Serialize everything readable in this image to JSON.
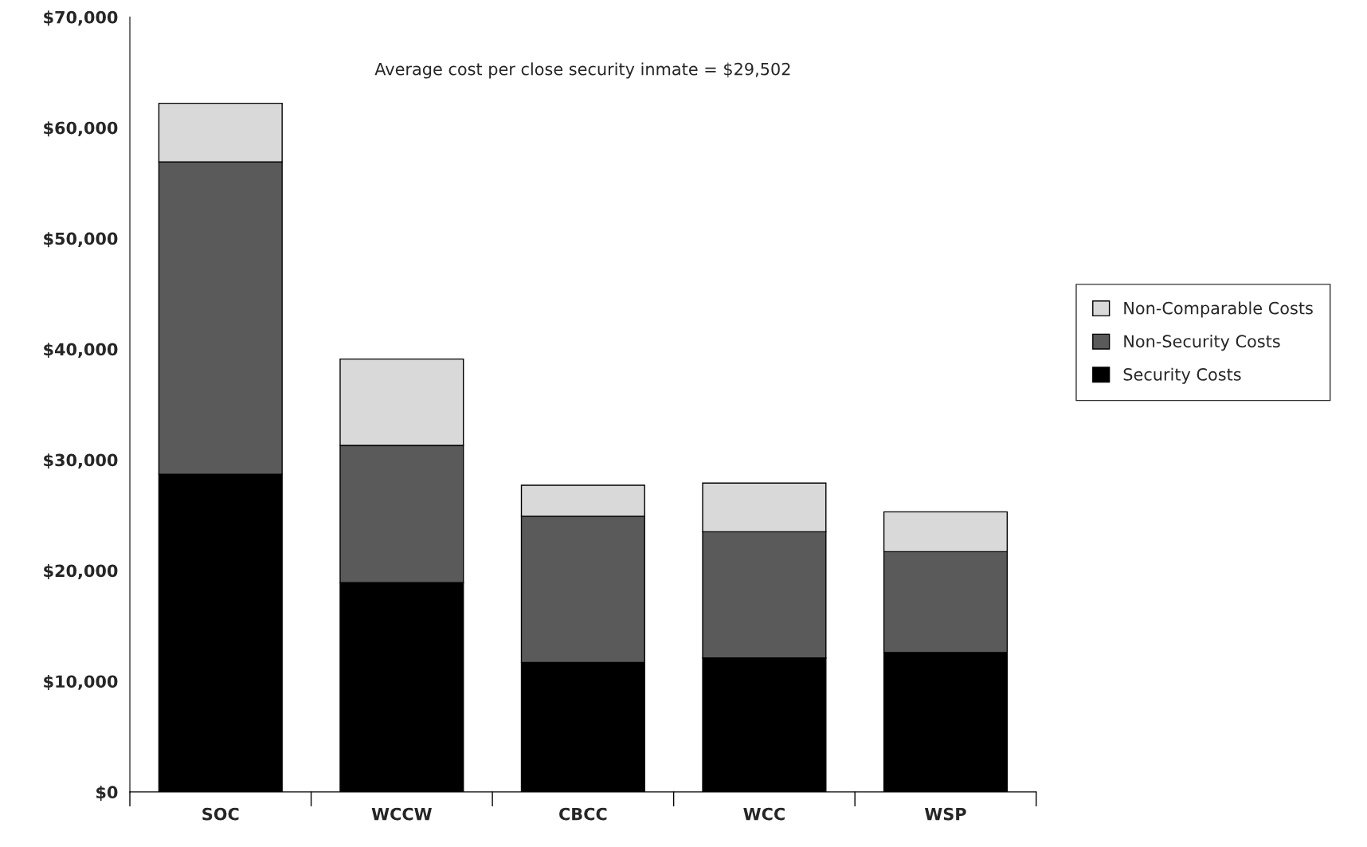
{
  "chart_data": {
    "type": "bar",
    "stacked": true,
    "categories": [
      "SOC",
      "WCCW",
      "CBCC",
      "WCC",
      "WSP"
    ],
    "series": [
      {
        "name": "Security Costs",
        "color": "#000000",
        "values": [
          28700,
          18900,
          11700,
          12100,
          12600
        ]
      },
      {
        "name": "Non-Security Costs",
        "color": "#5a5a5a",
        "values": [
          28200,
          12400,
          13200,
          11400,
          9100
        ]
      },
      {
        "name": "Non-Comparable Costs",
        "color": "#d9d9d9",
        "values": [
          5300,
          7800,
          2800,
          4400,
          3600
        ]
      }
    ],
    "ylim": [
      0,
      70000
    ],
    "yticks": [
      {
        "value": 0,
        "label": "$0"
      },
      {
        "value": 10000,
        "label": "$10,000"
      },
      {
        "value": 20000,
        "label": "$20,000"
      },
      {
        "value": 30000,
        "label": "$30,000"
      },
      {
        "value": 40000,
        "label": "$40,000"
      },
      {
        "value": 50000,
        "label": "$50,000"
      },
      {
        "value": 60000,
        "label": "$60,000"
      },
      {
        "value": 70000,
        "label": "$70,000"
      }
    ],
    "annotations": [
      "Average cost per close security inmate = $29,502"
    ],
    "legend": "right",
    "grid": false
  }
}
